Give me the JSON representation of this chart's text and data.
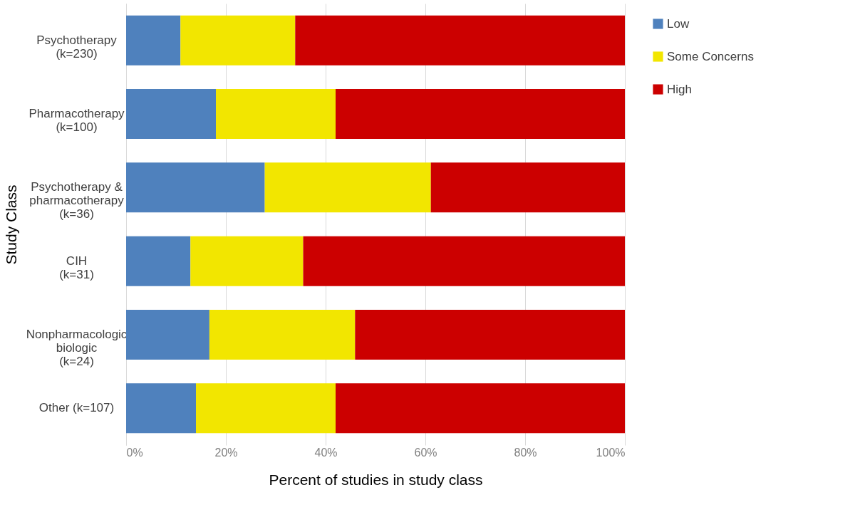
{
  "chart_data": {
    "type": "bar",
    "orientation": "horizontal",
    "stacked": true,
    "ylabel": "Study Class",
    "xlabel": "Percent of studies in study class",
    "categories": [
      "Psychotherapy\n(k=230)",
      "Pharmacotherapy\n(k=100)",
      "Psychotherapy &\npharmacotherapy\n(k=36)",
      "CIH\n(k=31)",
      "Nonpharmacologic\nbiologic\n(k=24)",
      "Other (k=107)"
    ],
    "series": [
      {
        "name": "Low",
        "color": "#4f81bd",
        "values": [
          10.9,
          18.0,
          27.8,
          12.9,
          16.7,
          14.0
        ]
      },
      {
        "name": "Some Concerns",
        "color": "#f2e600",
        "values": [
          23.0,
          24.0,
          33.3,
          22.6,
          29.2,
          28.0
        ]
      },
      {
        "name": "High",
        "color": "#cc0000",
        "values": [
          66.1,
          58.0,
          38.9,
          64.5,
          54.1,
          58.0
        ]
      }
    ],
    "xlim": [
      0,
      100
    ],
    "xticks": [
      {
        "value": 0,
        "label": "0%"
      },
      {
        "value": 20,
        "label": "20%"
      },
      {
        "value": 40,
        "label": "40%"
      },
      {
        "value": 60,
        "label": "60%"
      },
      {
        "value": 80,
        "label": "80%"
      },
      {
        "value": 100,
        "label": "100%"
      }
    ],
    "grid": "x",
    "legend": "right"
  }
}
